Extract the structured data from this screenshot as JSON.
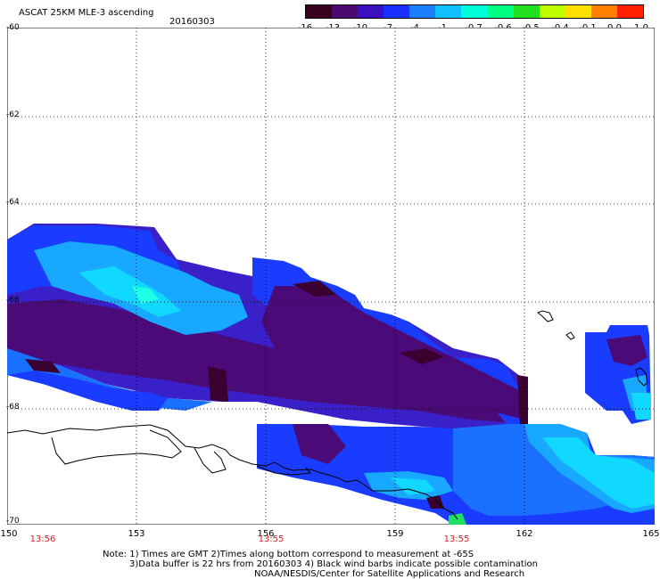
{
  "header": {
    "title": "ASCAT 25KM MLE-3 ascending",
    "date": "20160303"
  },
  "colorbar": {
    "labels": [
      "-16",
      "-13",
      "-10",
      "-7",
      "-4",
      "-1",
      "-0.7",
      "-0.6",
      "-0.5",
      "-0.4",
      "-0.1",
      "0.0",
      "1.0"
    ],
    "colors": [
      "#3a0020",
      "#4a0a70",
      "#3a10c0",
      "#1a30ff",
      "#1a80ff",
      "#10c0ff",
      "#00ffd8",
      "#00ff80",
      "#20e020",
      "#c0ff00",
      "#ffe000",
      "#ff8000",
      "#ff2000"
    ]
  },
  "axes": {
    "lat_labels": [
      "-60",
      "-62",
      "-64",
      "-66",
      "-68",
      "-70"
    ],
    "lon_labels": [
      "150",
      "153",
      "156",
      "159",
      "162",
      "165"
    ],
    "times": [
      "13:56",
      "13:55",
      "13:55"
    ]
  },
  "notes": {
    "line1": "Note: 1) Times are GMT 2)Times along bottom correspond to measurement at -65S",
    "line2": "3)Data buffer is 22 hrs from 20160303 4) Black wind barbs indicate possible contamination",
    "line3": "NOAA/NESDIS/Center for Satellite Applications and Research"
  },
  "map_colors": {
    "deep_purple": "#4a0a78",
    "dark": "#3a0030",
    "indigo": "#3a20c8",
    "blue": "#1a3cff",
    "mid_blue": "#1a70ff",
    "light_blue": "#18a8ff",
    "cyan": "#10d8ff",
    "aqua": "#20ffe8",
    "green": "#20e060"
  }
}
